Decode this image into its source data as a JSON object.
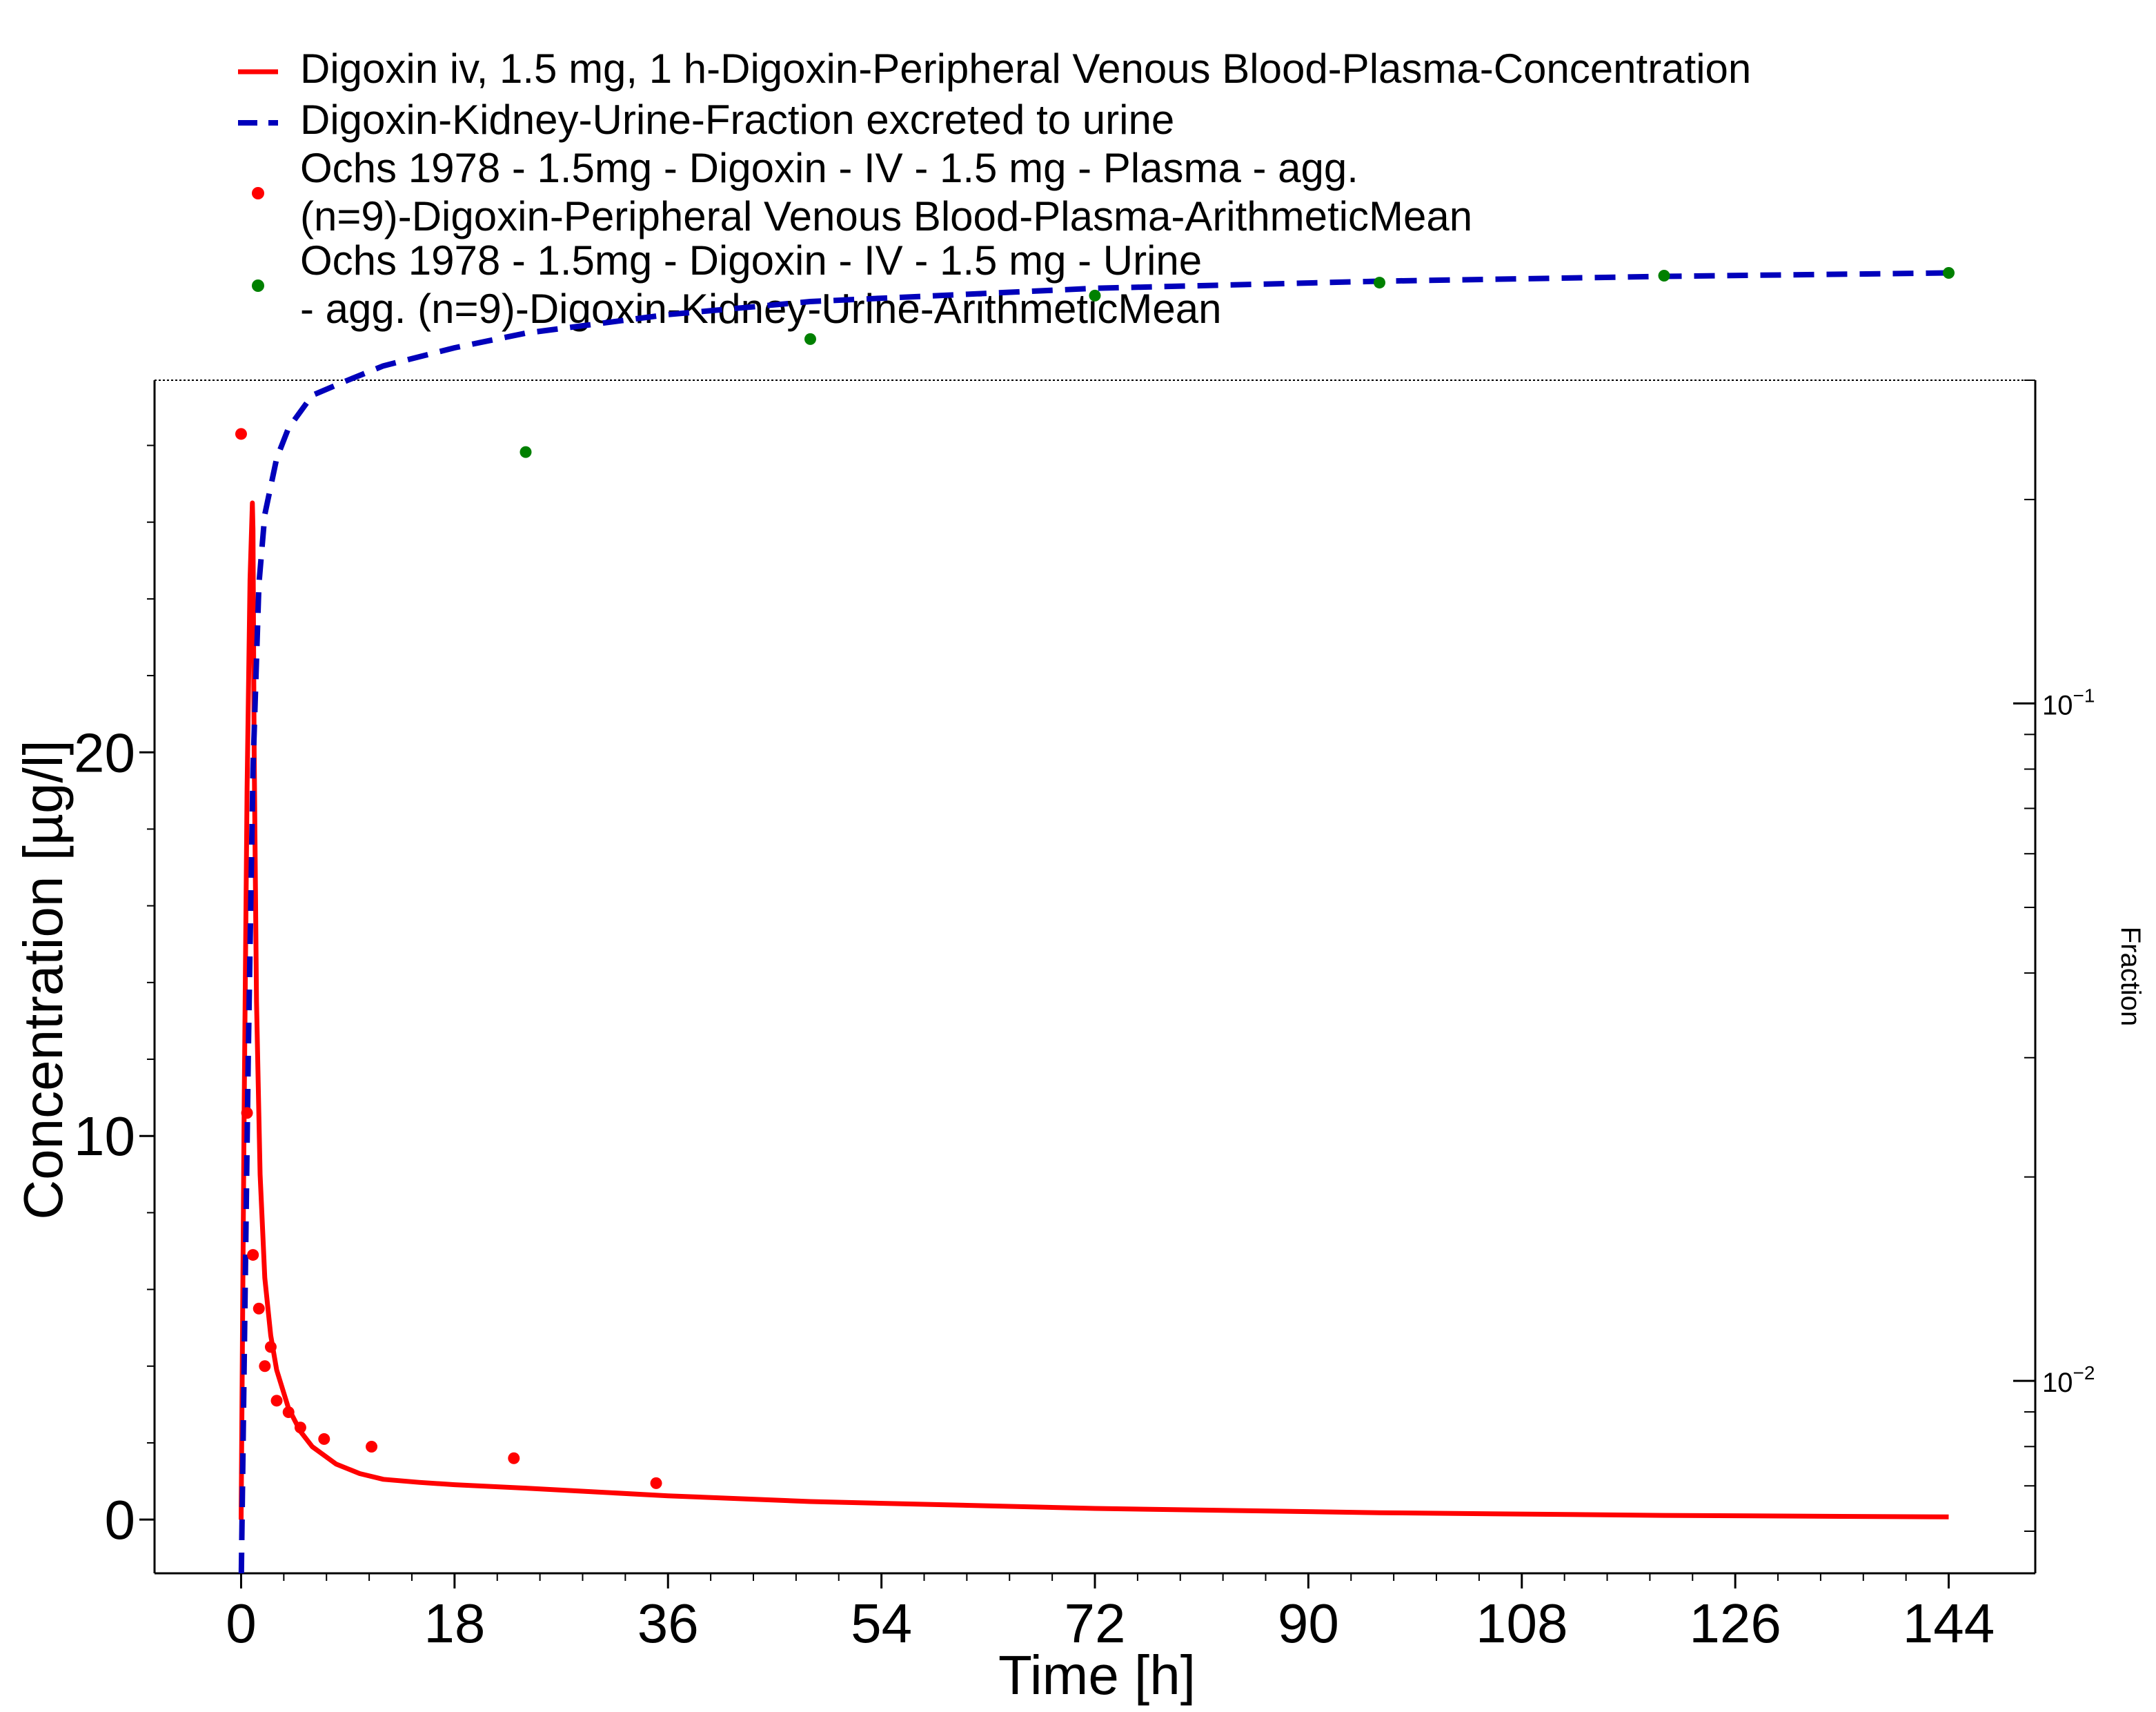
{
  "chart_data": {
    "type": "line",
    "title": "",
    "xlabel": "Time [h]",
    "ylabel": "Concentration [µg/l]",
    "y2label": "Fraction",
    "xlim": [
      -7.3,
      151.3
    ],
    "ylim": [
      -1.4,
      29.7
    ],
    "y2lim_log": [
      0.0052,
      0.3
    ],
    "y2_scale": "log",
    "x_ticks": [
      0,
      18,
      36,
      54,
      72,
      90,
      108,
      126,
      144
    ],
    "x_tick_labels": [
      "0",
      "18",
      "36",
      "54",
      "72",
      "90",
      "108",
      "126",
      "144"
    ],
    "y_ticks": [
      0,
      10,
      20
    ],
    "y_tick_labels": [
      "0",
      "10",
      "20"
    ],
    "y2_ticks": [
      0.01,
      0.1
    ],
    "y2_tick_labels": [
      {
        "base": "10",
        "exp": "−2"
      },
      {
        "base": "10",
        "exp": "−1"
      }
    ],
    "grid": false,
    "legend_position": "top",
    "legend": [
      {
        "kind": "solid-line",
        "color": "#ff0000",
        "lines": [
          "Digoxin iv, 1.5 mg, 1 h-Digoxin-Peripheral Venous Blood-Plasma-Concentration"
        ]
      },
      {
        "kind": "dashed-line",
        "color": "#0000bb",
        "lines": [
          "Digoxin-Kidney-Urine-Fraction excreted to urine"
        ]
      },
      {
        "kind": "dot",
        "color": "#ff0000",
        "lines": [
          "Ochs 1978 - 1.5mg - Digoxin - IV - 1.5 mg - Plasma - agg.",
          "(n=9)-Digoxin-Peripheral Venous Blood-Plasma-ArithmeticMean"
        ]
      },
      {
        "kind": "dot",
        "color": "#008000",
        "lines": [
          "Ochs 1978 - 1.5mg - Digoxin - IV - 1.5 mg - Urine",
          "- agg. (n=9)-Digoxin-Kidney-Urine-ArithmeticMean"
        ]
      }
    ],
    "series": [
      {
        "name": "Digoxin iv, 1.5 mg, 1 h-Digoxin-Peripheral Venous Blood-Plasma-Concentration",
        "style": "solid",
        "color": "#ff0000",
        "axis": "left",
        "x": [
          0,
          0.25,
          0.5,
          0.75,
          0.95,
          1.0,
          1.1,
          1.3,
          1.6,
          2,
          2.5,
          3,
          4,
          5,
          6,
          8,
          10,
          12,
          15,
          18,
          24,
          36,
          48,
          72,
          96,
          120,
          144
        ],
        "y": [
          0,
          10.5,
          19,
          24.5,
          26.5,
          25.8,
          20,
          13.5,
          9,
          6.3,
          4.8,
          3.9,
          2.9,
          2.3,
          1.9,
          1.45,
          1.2,
          1.05,
          0.97,
          0.91,
          0.82,
          0.62,
          0.47,
          0.29,
          0.18,
          0.11,
          0.07
        ]
      },
      {
        "name": "Digoxin-Kidney-Urine-Fraction excreted to urine",
        "style": "dashed",
        "color": "#0000bb",
        "axis": "right",
        "x": [
          0.02,
          0.3,
          0.6,
          1,
          1.5,
          2,
          3,
          4,
          6,
          9,
          12,
          18,
          24,
          36,
          48,
          72,
          96,
          120,
          144
        ],
        "y": [
          0.0052,
          0.012,
          0.03,
          0.08,
          0.15,
          0.19,
          0.23,
          0.255,
          0.285,
          0.3,
          0.315,
          0.335,
          0.352,
          0.375,
          0.392,
          0.41,
          0.42,
          0.427,
          0.432
        ]
      },
      {
        "name": "Ochs 1978 - 1.5mg - Digoxin - IV - 1.5 mg - Plasma - agg. (n=9)-Digoxin-Peripheral Venous Blood-Plasma-ArithmeticMean",
        "style": "points",
        "color": "#ff0000",
        "axis": "left",
        "x": [
          0,
          0.5,
          1,
          1.5,
          2,
          2.5,
          3,
          4,
          5,
          7,
          11,
          23,
          35
        ],
        "y": [
          28.3,
          10.6,
          6.9,
          5.5,
          4.0,
          4.5,
          3.1,
          2.8,
          2.4,
          2.1,
          1.9,
          1.6,
          0.95
        ]
      },
      {
        "name": "Ochs 1978 - 1.5mg - Digoxin - IV - 1.5 mg - Urine - agg. (n=9)-Digoxin-Kidney-Urine-ArithmeticMean",
        "style": "points",
        "color": "#008000",
        "axis": "right",
        "x": [
          24,
          48,
          72,
          96,
          120,
          144
        ],
        "y": [
          0.235,
          0.345,
          0.4,
          0.418,
          0.428,
          0.432
        ]
      }
    ]
  }
}
